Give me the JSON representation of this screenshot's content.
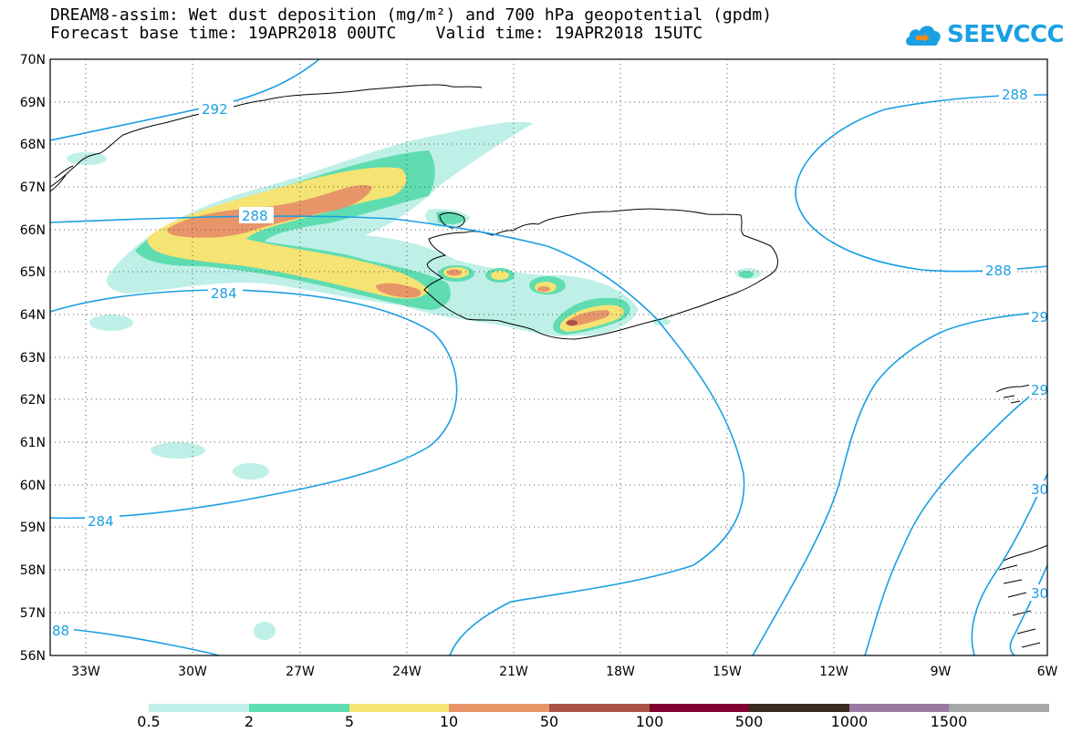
{
  "title": {
    "line1": "DREAM8-assim: Wet dust deposition (mg/m²) and 700 hPa geopotential (gpdm)",
    "line2": "Forecast base time: 19APR2018 00UTC    Valid time: 19APR2018 15UTC"
  },
  "logo": {
    "text": "SEEVCCC",
    "icon": "cloud-icon",
    "color": "#1a9fe3"
  },
  "map": {
    "lat_labels": [
      "70N",
      "69N",
      "68N",
      "67N",
      "66N",
      "65N",
      "64N",
      "63N",
      "62N",
      "61N",
      "60N",
      "59N",
      "58N",
      "57N",
      "56N"
    ],
    "lon_labels": [
      "33W",
      "30W",
      "27W",
      "24W",
      "21W",
      "18W",
      "15W",
      "12W",
      "9W",
      "6W"
    ],
    "grid": "dotted",
    "contour_color": "#1a9fe3",
    "contour_labels": [
      "292",
      "288",
      "288",
      "288",
      "284",
      "284",
      "88",
      "29",
      "29",
      "30",
      "30"
    ]
  },
  "colorbar": {
    "labels": [
      "0.5",
      "2",
      "5",
      "10",
      "50",
      "100",
      "500",
      "1000",
      "1500"
    ],
    "colors": [
      "#bff0e8",
      "#5fdcb0",
      "#f5e373",
      "#e8956a",
      "#a85346",
      "#800030",
      "#3a2a20",
      "#9a7aa0",
      "#a8a8a8"
    ]
  }
}
